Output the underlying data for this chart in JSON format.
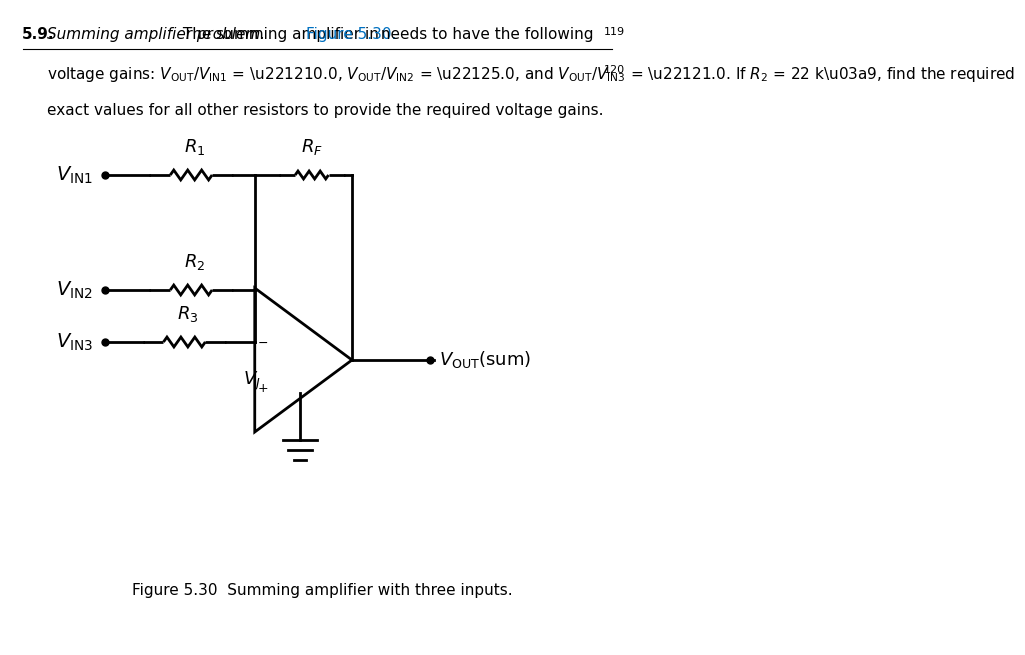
{
  "title_num": "5.9.",
  "title_italic": "Summing amplifier problem.",
  "title_text": " The summing amplifier in ",
  "title_link": "Figure 5.30.",
  "title_text2": " needs to have the following",
  "line2": "voltage gains: V₀ᵁᵀ/Vᴵ₁ = −10.0, V₀ᵁᵀ/Vᴵ₂ = −5.0, and V₀ᵁᵀ/Vᴵ₃ = −1.0. If R₂ = 22 kΩ, find the required",
  "line3": "exact values for all other resistors to provide the required voltage gains.",
  "page119": "119",
  "page120": "120",
  "fig_caption": "Figure 5.30  Summing amplifier with three inputs.",
  "bg_color": "#ffffff",
  "text_color": "#000000",
  "link_color": "#0070c0",
  "lw": 2.0
}
